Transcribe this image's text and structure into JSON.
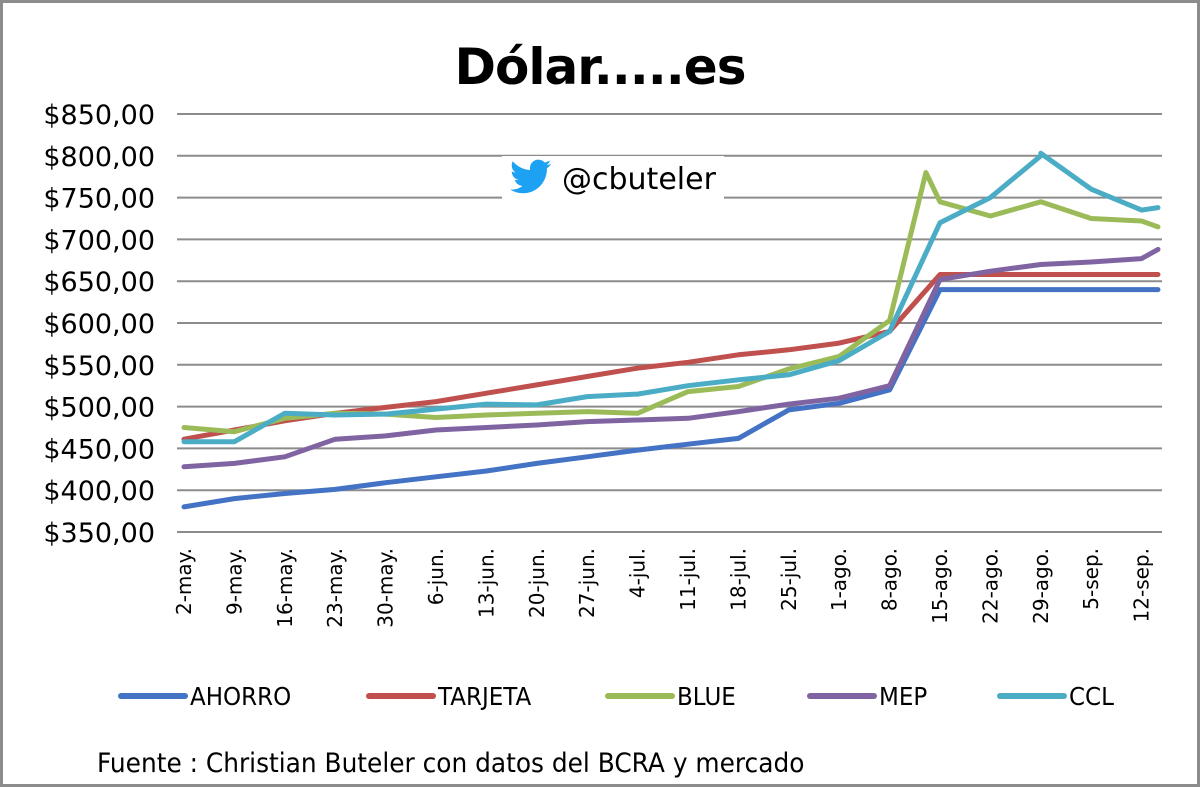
{
  "chart_data": {
    "type": "line",
    "title": "Dólar.....es",
    "watermark": "@cbuteler",
    "xlabel": "",
    "ylabel": "",
    "ylim": [
      350,
      850
    ],
    "yticks": [
      "$350,00",
      "$400,00",
      "$450,00",
      "$500,00",
      "$550,00",
      "$600,00",
      "$650,00",
      "$700,00",
      "$750,00",
      "$800,00",
      "$850,00"
    ],
    "grid": true,
    "legend_position": "bottom",
    "source": "Fuente : Christian Buteler con datos del BCRA y mercado",
    "categories": [
      "2-may.",
      "9-may.",
      "16-may.",
      "23-may.",
      "30-may.",
      "6-jun.",
      "13-jun.",
      "20-jun.",
      "27-jun.",
      "4-jul.",
      "11-jul.",
      "18-jul.",
      "25-jul.",
      "1-ago.",
      "8-ago.",
      "15-ago.",
      "22-ago.",
      "29-ago.",
      "5-sep.",
      "12-sep."
    ],
    "series": [
      {
        "name": "AHORRO",
        "color": "#4472C4",
        "values": [
          380,
          390,
          396,
          401,
          409,
          416,
          423,
          432,
          440,
          448,
          455,
          462,
          496,
          504,
          520,
          640,
          640,
          640,
          640,
          640
        ],
        "end_value": 640
      },
      {
        "name": "TARJETA",
        "color": "#C0504D",
        "values": [
          461,
          472,
          483,
          492,
          499,
          506,
          516,
          526,
          536,
          546,
          553,
          562,
          568,
          576,
          590,
          658,
          658,
          658,
          658,
          658
        ],
        "end_value": 658
      },
      {
        "name": "BLUE",
        "color": "#9BBB59",
        "values": [
          475,
          470,
          486,
          492,
          491,
          487,
          490,
          492,
          494,
          492,
          518,
          524,
          545,
          560,
          603,
          745,
          728,
          745,
          725,
          722
        ],
        "peak": {
          "date": "13-ago.",
          "value": 780
        },
        "end_value": 715
      },
      {
        "name": "MEP",
        "color": "#8064A2",
        "values": [
          428,
          432,
          440,
          461,
          465,
          472,
          475,
          478,
          482,
          484,
          486,
          494,
          503,
          510,
          525,
          652,
          662,
          670,
          673,
          677
        ],
        "end_value": 688
      },
      {
        "name": "CCL",
        "color": "#4BACC6",
        "values": [
          458,
          458,
          492,
          490,
          491,
          497,
          503,
          502,
          512,
          515,
          525,
          532,
          538,
          555,
          590,
          720,
          750,
          800,
          760,
          735
        ],
        "peak": {
          "date": "29-ago.",
          "value": 803
        },
        "end_value": 738
      }
    ]
  },
  "legend": [
    {
      "label": "AHORRO",
      "color": "#4472C4"
    },
    {
      "label": "TARJETA",
      "color": "#C0504D"
    },
    {
      "label": "BLUE",
      "color": "#9BBB59"
    },
    {
      "label": "MEP",
      "color": "#8064A2"
    },
    {
      "label": "CCL",
      "color": "#4BACC6"
    }
  ],
  "watermark": {
    "handle": "@cbuteler",
    "icon": "twitter-bird-icon",
    "icon_color": "#1DA1F2"
  },
  "footer": {
    "source": "Fuente : Christian Buteler con datos del BCRA y mercado"
  }
}
